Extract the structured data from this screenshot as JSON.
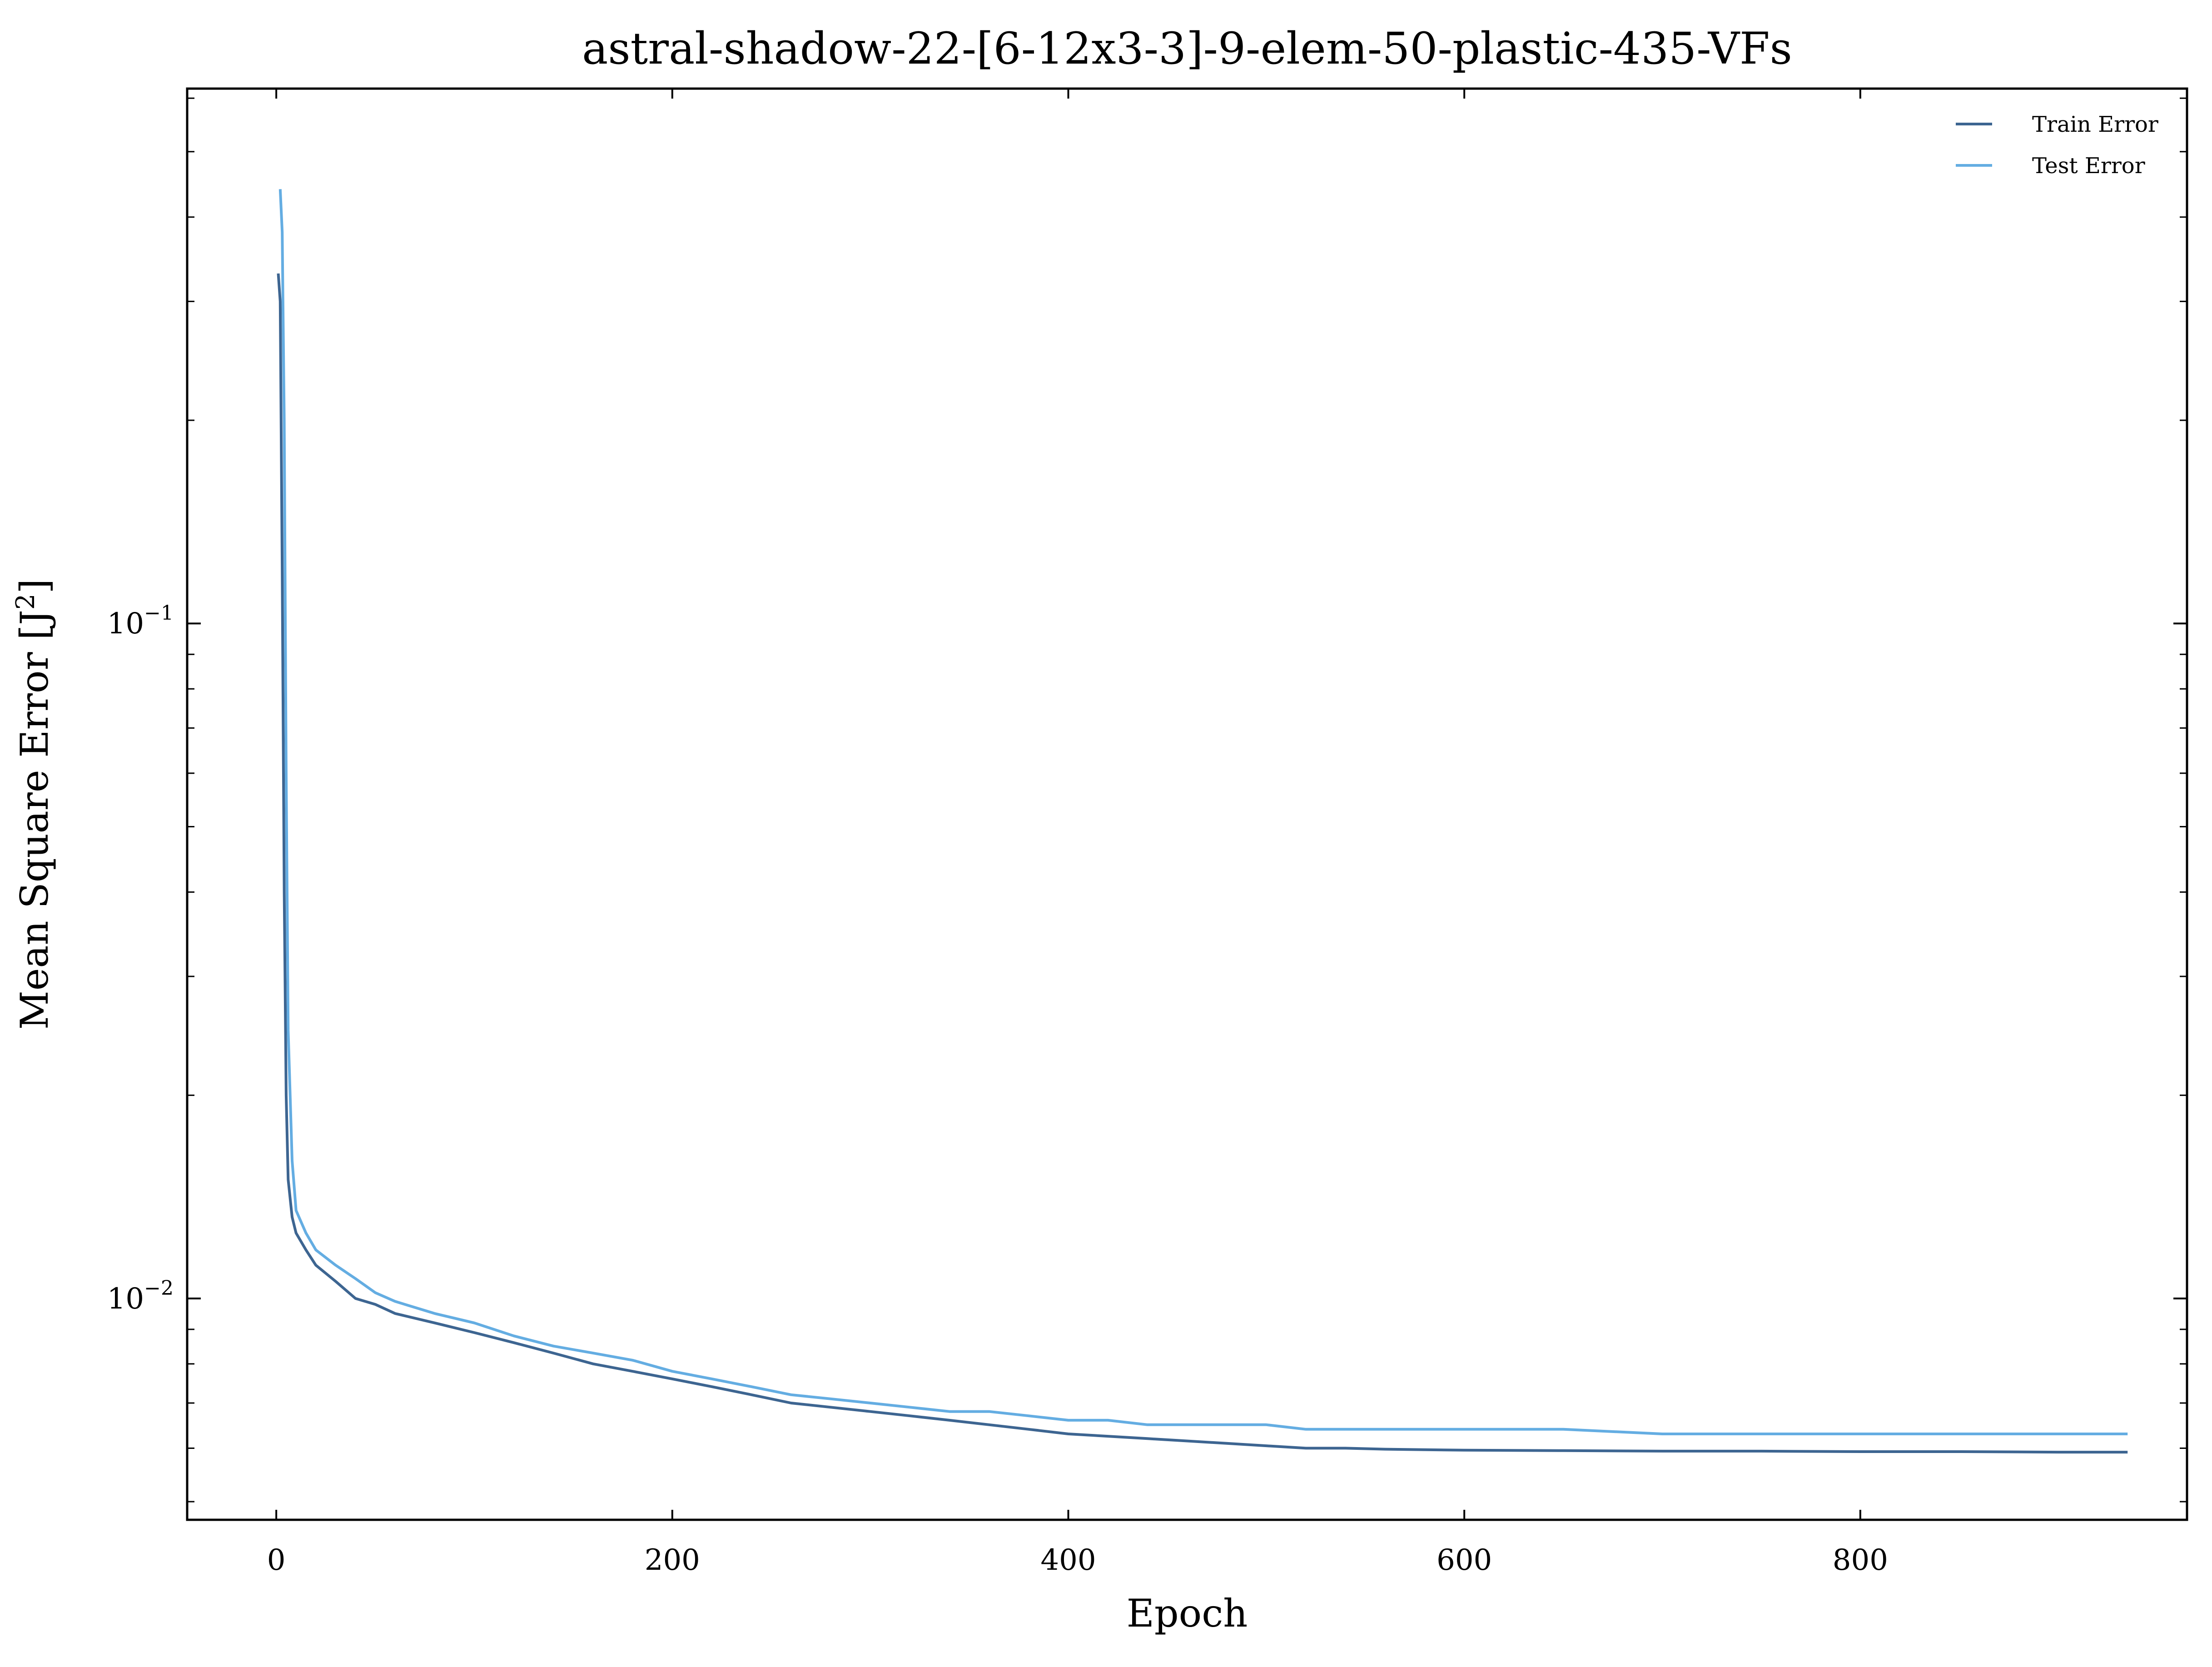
{
  "chart_data": {
    "type": "line",
    "title": "astral-shadow-22-[6-12x3-3]-9-elem-50-plastic-435-VFs",
    "xlabel": "Epoch",
    "ylabel": "Mean Square Error [J²]",
    "ylabel_base": "Mean Square Error [J",
    "ylabel_sup": "2",
    "ylabel_tail": "]",
    "yscale": "log",
    "xlim": [
      -45,
      965
    ],
    "ylim": [
      0.0047,
      0.62
    ],
    "x_ticks": [
      0,
      200,
      400,
      600,
      800
    ],
    "x_tick_labels": [
      "0",
      "200",
      "400",
      "600",
      "800"
    ],
    "y_ticks": [
      0.1,
      0.01
    ],
    "y_tick_labels": [
      {
        "base": "10",
        "exp": "−1"
      },
      {
        "base": "10",
        "exp": "−2"
      }
    ],
    "grid": false,
    "legend_position": "top-right",
    "colors": {
      "train": "#3d6591",
      "test": "#64ade2"
    },
    "series": [
      {
        "name": "Train Error",
        "key": "train",
        "x": [
          1,
          2,
          3,
          4,
          5,
          6,
          8,
          10,
          15,
          20,
          30,
          40,
          50,
          60,
          80,
          100,
          120,
          140,
          160,
          180,
          200,
          220,
          240,
          260,
          280,
          300,
          320,
          340,
          360,
          380,
          400,
          420,
          440,
          460,
          480,
          500,
          520,
          540,
          560,
          580,
          600,
          650,
          700,
          750,
          800,
          850,
          900,
          935
        ],
        "y": [
          0.33,
          0.3,
          0.12,
          0.04,
          0.02,
          0.015,
          0.0132,
          0.0125,
          0.0118,
          0.0112,
          0.0106,
          0.01,
          0.0098,
          0.0095,
          0.0092,
          0.0089,
          0.0086,
          0.0083,
          0.008,
          0.0078,
          0.0076,
          0.0074,
          0.0072,
          0.007,
          0.0069,
          0.0068,
          0.0067,
          0.0066,
          0.0065,
          0.0064,
          0.0063,
          0.00625,
          0.0062,
          0.00615,
          0.0061,
          0.00605,
          0.006,
          0.006,
          0.00598,
          0.00597,
          0.00596,
          0.00595,
          0.00594,
          0.00594,
          0.00593,
          0.00593,
          0.00592,
          0.00592
        ]
      },
      {
        "name": "Test Error",
        "key": "test",
        "x": [
          2,
          3,
          4,
          5,
          6,
          8,
          10,
          15,
          20,
          30,
          40,
          50,
          60,
          80,
          100,
          120,
          140,
          160,
          180,
          200,
          220,
          240,
          260,
          280,
          300,
          320,
          340,
          360,
          380,
          400,
          420,
          440,
          460,
          480,
          500,
          520,
          540,
          560,
          580,
          600,
          650,
          700,
          750,
          800,
          850,
          900,
          935
        ],
        "y": [
          0.44,
          0.38,
          0.2,
          0.06,
          0.025,
          0.016,
          0.0135,
          0.0125,
          0.0118,
          0.0112,
          0.0107,
          0.0102,
          0.0099,
          0.0095,
          0.0092,
          0.0088,
          0.0085,
          0.0083,
          0.0081,
          0.0078,
          0.0076,
          0.0074,
          0.0072,
          0.0071,
          0.007,
          0.0069,
          0.0068,
          0.0068,
          0.0067,
          0.0066,
          0.0066,
          0.0065,
          0.0065,
          0.0065,
          0.0065,
          0.0064,
          0.0064,
          0.0064,
          0.0064,
          0.0064,
          0.0064,
          0.0063,
          0.0063,
          0.0063,
          0.0063,
          0.0063,
          0.0063
        ]
      }
    ]
  }
}
